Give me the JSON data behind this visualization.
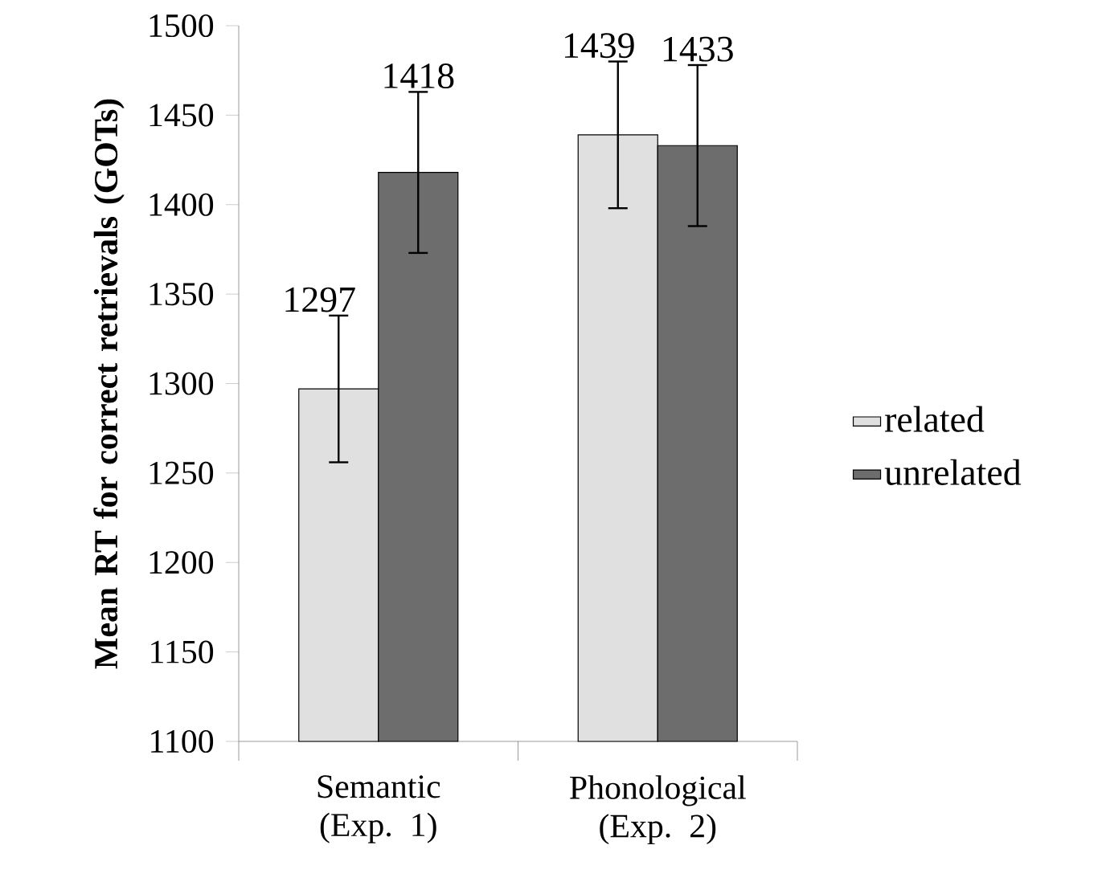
{
  "chart_data": {
    "type": "bar",
    "ylabel": "Mean RT for correct retrievals (GOTs)",
    "categories": [
      "Semantic (Exp. 1)",
      "Phonological (Exp. 2)"
    ],
    "series": [
      {
        "name": "related",
        "color": "#e0e0e0",
        "values": [
          1297,
          1439
        ],
        "errors": [
          41,
          41
        ]
      },
      {
        "name": "unrelated",
        "color": "#6d6d6d",
        "values": [
          1418,
          1433
        ],
        "errors": [
          45,
          45
        ]
      }
    ],
    "ylim": [
      1100,
      1500
    ],
    "yticks": [
      1100,
      1150,
      1200,
      1250,
      1300,
      1350,
      1400,
      1450,
      1500
    ],
    "data_labels": true,
    "legend": "right",
    "grid": false
  }
}
